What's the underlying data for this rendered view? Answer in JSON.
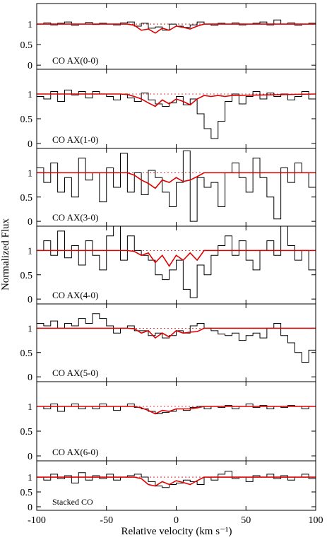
{
  "ylabel": "Normalized Flux",
  "chart_data": [
    {
      "type": "line",
      "label": "CO AX(0-0)",
      "ylim": [
        -0.1,
        1.5
      ],
      "yticks": [
        0,
        0.5,
        1
      ],
      "xlim": [
        -100,
        100
      ],
      "hline": 1,
      "series": [
        {
          "color": "#000000",
          "drawstyle": "steps-mid",
          "x": [
            -97.5,
            -92.5,
            -87.5,
            -82.5,
            -77.5,
            -72.5,
            -67.5,
            -62.5,
            -57.5,
            -52.5,
            -47.5,
            -42.5,
            -37.5,
            -32.5,
            -27.5,
            -22.5,
            -17.5,
            -12.5,
            -7.5,
            -2.5,
            2.5,
            7.5,
            12.5,
            17.5,
            22.5,
            27.5,
            32.5,
            37.5,
            42.5,
            47.5,
            52.5,
            57.5,
            62.5,
            67.5,
            72.5,
            77.5,
            82.5,
            87.5,
            92.5,
            97.5
          ],
          "values": [
            1.0,
            1.03,
            0.98,
            1.02,
            1.05,
            0.97,
            1.0,
            1.04,
            0.99,
            1.02,
            1.0,
            0.98,
            1.03,
            1.05,
            0.95,
            1.02,
            0.9,
            0.93,
            0.85,
            1.0,
            0.95,
            0.92,
            0.98,
            1.05,
            1.0,
            0.97,
            1.02,
            1.0,
            1.03,
            0.98,
            1.0,
            1.02,
            1.05,
            0.98,
            1.1,
            1.0,
            1.03,
            0.97,
            1.0,
            1.02
          ]
        },
        {
          "color": "#e00000",
          "x": [
            -100,
            -40,
            -35,
            -30,
            -25,
            -20,
            -15,
            -10,
            -5,
            0,
            5,
            10,
            15,
            20,
            25,
            30,
            35,
            40,
            100
          ],
          "values": [
            1,
            1,
            1,
            0.97,
            0.85,
            0.88,
            0.78,
            0.9,
            0.85,
            0.95,
            0.92,
            0.88,
            0.95,
            1,
            1,
            1,
            1,
            1,
            1
          ]
        }
      ]
    },
    {
      "type": "line",
      "label": "CO AX(1-0)",
      "ylim": [
        -0.1,
        1.5
      ],
      "yticks": [
        0,
        0.5,
        1
      ],
      "xlim": [
        -100,
        100
      ],
      "hline": 1,
      "series": [
        {
          "color": "#000000",
          "drawstyle": "steps-mid",
          "x": [
            -97.5,
            -92.5,
            -87.5,
            -82.5,
            -77.5,
            -72.5,
            -67.5,
            -62.5,
            -57.5,
            -52.5,
            -47.5,
            -42.5,
            -37.5,
            -32.5,
            -27.5,
            -22.5,
            -17.5,
            -12.5,
            -7.5,
            -2.5,
            2.5,
            7.5,
            12.5,
            17.5,
            22.5,
            27.5,
            32.5,
            37.5,
            42.5,
            47.5,
            52.5,
            57.5,
            62.5,
            67.5,
            72.5,
            77.5,
            82.5,
            87.5,
            92.5,
            97.5
          ],
          "values": [
            0.95,
            0.9,
            1.05,
            0.85,
            1.08,
            0.98,
            1.05,
            0.92,
            1.05,
            1.0,
            0.95,
            0.88,
            1.0,
            0.92,
            0.85,
            1.02,
            0.88,
            0.8,
            0.75,
            0.82,
            0.95,
            0.78,
            0.9,
            0.6,
            0.3,
            0.1,
            0.45,
            0.85,
            1.0,
            0.8,
            0.95,
            1.05,
            0.9,
            1.02,
            0.95,
            1.0,
            0.88,
            0.95,
            1.05,
            0.9
          ]
        },
        {
          "color": "#e00000",
          "x": [
            -100,
            -40,
            -35,
            -30,
            -25,
            -20,
            -15,
            -10,
            -5,
            0,
            5,
            10,
            15,
            20,
            25,
            30,
            35,
            40,
            100
          ],
          "values": [
            1,
            1,
            0.99,
            0.95,
            0.9,
            0.82,
            0.75,
            0.88,
            0.8,
            0.9,
            0.85,
            0.78,
            0.9,
            0.97,
            0.95,
            0.97,
            0.95,
            0.97,
            1
          ]
        }
      ]
    },
    {
      "type": "line",
      "label": "CO AX(3-0)",
      "ylim": [
        -0.1,
        1.5
      ],
      "yticks": [
        0,
        0.5,
        1
      ],
      "xlim": [
        -100,
        100
      ],
      "hline": 1,
      "series": [
        {
          "color": "#000000",
          "drawstyle": "steps-mid",
          "x": [
            -97.5,
            -92.5,
            -87.5,
            -82.5,
            -77.5,
            -72.5,
            -67.5,
            -62.5,
            -57.5,
            -52.5,
            -47.5,
            -42.5,
            -37.5,
            -32.5,
            -27.5,
            -22.5,
            -17.5,
            -12.5,
            -7.5,
            -2.5,
            2.5,
            7.5,
            12.5,
            17.5,
            22.5,
            27.5,
            32.5,
            37.5,
            42.5,
            47.5,
            52.5,
            57.5,
            62.5,
            67.5,
            72.5,
            77.5,
            82.5,
            87.5,
            92.5,
            97.5
          ],
          "values": [
            1.1,
            0.8,
            1.2,
            0.6,
            0.9,
            0.5,
            1.3,
            0.85,
            1.0,
            0.4,
            1.1,
            0.7,
            1.4,
            0.6,
            1.0,
            0.55,
            1.05,
            0.9,
            0.6,
            0.3,
            0.8,
            1.45,
            0.0,
            0.9,
            0.7,
            0.8,
            0.3,
            1.0,
            1.2,
            0.9,
            0.6,
            1.3,
            0.9,
            0.5,
            0.05,
            1.1,
            0.8,
            1.2,
            1.0,
            0.7
          ]
        },
        {
          "color": "#e00000",
          "x": [
            -100,
            -40,
            -35,
            -30,
            -25,
            -20,
            -15,
            -10,
            -5,
            0,
            5,
            10,
            15,
            20,
            25,
            30,
            35,
            40,
            100
          ],
          "values": [
            1,
            1,
            1,
            0.95,
            0.85,
            0.78,
            0.68,
            0.85,
            0.8,
            0.9,
            0.82,
            0.85,
            0.92,
            1,
            1,
            1,
            1,
            1,
            1
          ]
        }
      ]
    },
    {
      "type": "line",
      "label": "CO AX(4-0)",
      "ylim": [
        -0.1,
        1.5
      ],
      "yticks": [
        0,
        0.5,
        1
      ],
      "xlim": [
        -100,
        100
      ],
      "hline": 1,
      "series": [
        {
          "color": "#000000",
          "drawstyle": "steps-mid",
          "x": [
            -97.5,
            -92.5,
            -87.5,
            -82.5,
            -77.5,
            -72.5,
            -67.5,
            -62.5,
            -57.5,
            -52.5,
            -47.5,
            -42.5,
            -37.5,
            -32.5,
            -27.5,
            -22.5,
            -17.5,
            -12.5,
            -7.5,
            -2.5,
            2.5,
            7.5,
            12.5,
            17.5,
            22.5,
            27.5,
            32.5,
            37.5,
            42.5,
            47.5,
            52.5,
            57.5,
            62.5,
            67.5,
            72.5,
            77.5,
            82.5,
            87.5,
            92.5,
            97.5
          ],
          "values": [
            1.0,
            1.2,
            0.9,
            1.4,
            0.85,
            1.1,
            0.7,
            1.2,
            0.9,
            0.6,
            1.3,
            1.5,
            0.8,
            1.3,
            1.0,
            0.9,
            0.8,
            0.5,
            0.4,
            0.6,
            0.8,
            0.2,
            0.03,
            0.7,
            0.5,
            0.9,
            1.1,
            1.3,
            0.9,
            1.2,
            0.8,
            0.6,
            1.0,
            1.2,
            0.9,
            1.5,
            1.1,
            0.8,
            1.0,
            0.6
          ]
        },
        {
          "color": "#e00000",
          "x": [
            -100,
            -40,
            -35,
            -30,
            -25,
            -20,
            -15,
            -10,
            -5,
            0,
            5,
            10,
            15,
            20,
            25,
            30,
            35,
            40,
            100
          ],
          "values": [
            1,
            1,
            1,
            0.98,
            0.9,
            0.95,
            0.75,
            0.9,
            0.68,
            0.9,
            0.8,
            0.95,
            0.8,
            1,
            1,
            1,
            1,
            1,
            1
          ]
        }
      ]
    },
    {
      "type": "line",
      "label": "CO AX(5-0)",
      "ylim": [
        -0.1,
        1.5
      ],
      "yticks": [
        0,
        0.5,
        1
      ],
      "xlim": [
        -100,
        100
      ],
      "hline": 1,
      "series": [
        {
          "color": "#000000",
          "drawstyle": "steps-mid",
          "x": [
            -97.5,
            -92.5,
            -87.5,
            -82.5,
            -77.5,
            -72.5,
            -67.5,
            -62.5,
            -57.5,
            -52.5,
            -47.5,
            -42.5,
            -37.5,
            -32.5,
            -27.5,
            -22.5,
            -17.5,
            -12.5,
            -7.5,
            -2.5,
            2.5,
            7.5,
            12.5,
            17.5,
            22.5,
            27.5,
            32.5,
            37.5,
            42.5,
            47.5,
            52.5,
            57.5,
            62.5,
            67.5,
            72.5,
            77.5,
            82.5,
            87.5,
            92.5,
            97.5
          ],
          "values": [
            1.1,
            1.05,
            1.15,
            1.0,
            1.1,
            1.05,
            1.2,
            1.1,
            1.3,
            1.2,
            1.05,
            0.9,
            1.0,
            1.05,
            0.95,
            0.95,
            0.85,
            0.9,
            0.8,
            0.85,
            0.95,
            0.9,
            1.05,
            1.1,
            1.0,
            0.95,
            0.88,
            0.85,
            0.9,
            0.75,
            0.85,
            0.9,
            0.8,
            1.0,
            1.1,
            0.85,
            0.7,
            0.5,
            0.3,
            0.55
          ]
        },
        {
          "color": "#e00000",
          "x": [
            -100,
            -40,
            -35,
            -30,
            -25,
            -20,
            -15,
            -10,
            -5,
            0,
            5,
            10,
            15,
            20,
            25,
            30,
            35,
            40,
            100
          ],
          "values": [
            1,
            1,
            1,
            0.99,
            0.9,
            0.95,
            0.8,
            0.9,
            0.82,
            0.95,
            0.9,
            0.92,
            0.93,
            1,
            1,
            1,
            1,
            1,
            1
          ]
        }
      ]
    },
    {
      "type": "line",
      "label": "CO AX(6-0)",
      "ylim": [
        -0.1,
        1.5
      ],
      "yticks": [
        0,
        0.5,
        1
      ],
      "xlim": [
        -100,
        100
      ],
      "hline": 1,
      "series": [
        {
          "color": "#000000",
          "drawstyle": "steps-mid",
          "x": [
            -97.5,
            -92.5,
            -87.5,
            -82.5,
            -77.5,
            -72.5,
            -67.5,
            -62.5,
            -57.5,
            -52.5,
            -47.5,
            -42.5,
            -37.5,
            -32.5,
            -27.5,
            -22.5,
            -17.5,
            -12.5,
            -7.5,
            -2.5,
            2.5,
            7.5,
            12.5,
            17.5,
            22.5,
            27.5,
            32.5,
            37.5,
            42.5,
            47.5,
            52.5,
            57.5,
            62.5,
            67.5,
            72.5,
            77.5,
            82.5,
            87.5,
            92.5,
            97.5
          ],
          "values": [
            1.0,
            0.95,
            1.05,
            0.9,
            1.0,
            1.05,
            0.95,
            1.0,
            0.95,
            1.05,
            1.0,
            0.92,
            1.0,
            1.05,
            0.98,
            0.95,
            0.9,
            0.85,
            0.88,
            0.9,
            0.95,
            0.92,
            0.98,
            1.0,
            0.95,
            1.0,
            0.98,
            1.02,
            0.95,
            1.0,
            1.05,
            0.98,
            1.02,
            0.95,
            1.0,
            0.98,
            1.02,
            1.0,
            0.95,
            1.0
          ]
        },
        {
          "color": "#e00000",
          "x": [
            -100,
            -40,
            -35,
            -30,
            -25,
            -20,
            -15,
            -10,
            -5,
            0,
            5,
            10,
            15,
            20,
            25,
            30,
            35,
            40,
            100
          ],
          "values": [
            1,
            1,
            1,
            1,
            0.97,
            0.92,
            0.85,
            0.92,
            0.9,
            0.95,
            0.95,
            0.95,
            0.97,
            1,
            1,
            1,
            1,
            1,
            1
          ]
        }
      ]
    },
    {
      "type": "line",
      "label": "Stacked CO",
      "ylim": [
        -0.12,
        1.55
      ],
      "yticks": [
        0,
        0.5,
        1
      ],
      "xlim": [
        -100,
        100
      ],
      "hline": 1,
      "xticks": [
        -100,
        -50,
        0,
        50,
        100
      ],
      "xlabel": "Relative velocity (km s⁻¹)",
      "series": [
        {
          "color": "#000000",
          "drawstyle": "steps-mid",
          "x": [
            -97.5,
            -92.5,
            -87.5,
            -82.5,
            -77.5,
            -72.5,
            -67.5,
            -62.5,
            -57.5,
            -52.5,
            -47.5,
            -42.5,
            -37.5,
            -32.5,
            -27.5,
            -22.5,
            -17.5,
            -12.5,
            -7.5,
            -2.5,
            2.5,
            7.5,
            12.5,
            17.5,
            22.5,
            27.5,
            32.5,
            37.5,
            42.5,
            47.5,
            52.5,
            57.5,
            62.5,
            67.5,
            72.5,
            77.5,
            82.5,
            87.5,
            92.5,
            97.5
          ],
          "values": [
            1.0,
            0.9,
            1.1,
            0.95,
            1.05,
            0.8,
            1.15,
            0.9,
            1.05,
            0.95,
            1.1,
            0.9,
            1.0,
            1.05,
            1.1,
            1.0,
            0.85,
            0.7,
            0.65,
            0.75,
            0.8,
            0.9,
            0.85,
            0.75,
            1.0,
            0.9,
            1.1,
            1.2,
            0.95,
            1.0,
            0.85,
            1.05,
            1.0,
            1.1,
            0.95,
            1.05,
            0.9,
            1.0,
            1.1,
            0.95
          ]
        },
        {
          "color": "#e00000",
          "x": [
            -100,
            -40,
            -35,
            -30,
            -25,
            -20,
            -15,
            -10,
            -5,
            0,
            5,
            10,
            15,
            20,
            25,
            30,
            35,
            40,
            100
          ],
          "values": [
            1,
            1,
            1,
            1,
            0.95,
            0.75,
            0.7,
            0.85,
            0.75,
            0.88,
            0.82,
            0.75,
            0.88,
            1,
            1,
            1,
            1,
            1,
            1
          ]
        }
      ]
    }
  ]
}
